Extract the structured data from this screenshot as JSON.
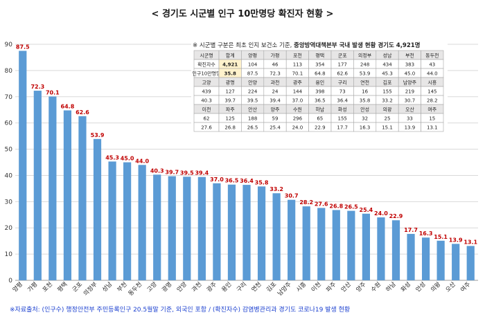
{
  "chart_data": {
    "type": "bar",
    "title": "< 경기도 시군별 인구 10만명당 확진자 현황 >",
    "ylim": [
      0,
      90
    ],
    "yticks": [
      0,
      10,
      20,
      30,
      40,
      50,
      60,
      70,
      80,
      90
    ],
    "grid": true,
    "categories": [
      "양평",
      "가평",
      "포천",
      "평택",
      "군포",
      "의정부",
      "성남",
      "부천",
      "동두천",
      "고양",
      "광명",
      "안양",
      "과천",
      "광주",
      "용인",
      "구리",
      "연천",
      "김포",
      "남양주",
      "시흥",
      "이천",
      "파주",
      "안산",
      "양주",
      "수원",
      "하남",
      "화성",
      "안성",
      "의왕",
      "오산",
      "여주"
    ],
    "values": [
      87.5,
      72.3,
      70.1,
      64.8,
      62.6,
      53.9,
      45.3,
      45.0,
      44.0,
      40.3,
      39.7,
      39.5,
      39.4,
      37.0,
      36.5,
      36.4,
      35.8,
      33.2,
      30.7,
      28.2,
      27.6,
      26.8,
      26.5,
      25.4,
      24.0,
      22.9,
      17.7,
      16.3,
      15.1,
      13.9,
      13.1
    ],
    "value_labels": [
      "87.5",
      "72.3",
      "70.1",
      "64.8",
      "62.6",
      "53.9",
      "45.3",
      "45.0",
      "44.0",
      "40.3",
      "39.7",
      "39.5",
      "39.4",
      "37.0",
      "36.5",
      "36.4",
      "35.8",
      "33.2",
      "30.7",
      "28.2",
      "27.6",
      "26.8",
      "26.5",
      "25.4",
      "24.0",
      "22.9",
      "17.7",
      "16.3",
      "15.1",
      "13.9",
      "13.1"
    ],
    "bar_color": "#5b9bd5",
    "label_color": "#c00000"
  },
  "table": {
    "note_prefix": "※ 시군별 구분은 최초 인지 보건소 기준, ",
    "note_bold": "중앙방역대책본부 국내 발생 현황 경기도 4,921명",
    "highlight_bg": "#fff2cc",
    "header_bg": "#e7e6e6",
    "sections": [
      {
        "header": [
          "시군명",
          "합계",
          "양평",
          "가평",
          "포천",
          "평택",
          "군포",
          "의정부",
          "성남",
          "부천",
          "동두천"
        ],
        "rows": [
          [
            "확진자수",
            "4,921",
            "104",
            "46",
            "113",
            "354",
            "177",
            "248",
            "434",
            "383",
            "43"
          ],
          [
            "인구10만명당",
            "35.8",
            "87.5",
            "72.3",
            "70.1",
            "64.8",
            "62.6",
            "53.9",
            "45.3",
            "45.0",
            "44.0"
          ]
        ]
      },
      {
        "header": [
          "고양",
          "광명",
          "안양",
          "과천",
          "광주",
          "용인",
          "구리",
          "연천",
          "김포",
          "남양주",
          "시흥"
        ],
        "rows": [
          [
            "439",
            "127",
            "224",
            "24",
            "144",
            "398",
            "73",
            "16",
            "155",
            "219",
            "145"
          ],
          [
            "40.3",
            "39.7",
            "39.5",
            "39.4",
            "37.0",
            "36.5",
            "36.4",
            "35.8",
            "33.2",
            "30.7",
            "28.2"
          ]
        ]
      },
      {
        "header": [
          "이천",
          "파주",
          "안산",
          "양주",
          "수원",
          "하남",
          "화성",
          "안성",
          "의왕",
          "오산",
          "여주"
        ],
        "rows": [
          [
            "62",
            "125",
            "188",
            "59",
            "296",
            "65",
            "155",
            "32",
            "25",
            "33",
            "15"
          ],
          [
            "27.6",
            "26.8",
            "26.5",
            "25.4",
            "24.0",
            "22.9",
            "17.7",
            "16.3",
            "15.1",
            "13.9",
            "13.1"
          ]
        ]
      }
    ]
  },
  "footer": {
    "source": "※자료출처: (인구수) 행정안전부 주민등록인구 20.5월말 기준, 외국인 포함 / (확진자수) 감염병관리과 경기도 코로나19 발생 현황"
  }
}
